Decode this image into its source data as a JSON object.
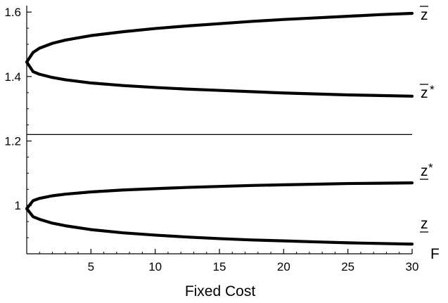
{
  "chart_data": {
    "type": "line",
    "xlabel": "Fixed Cost",
    "x_axis_end_label": "F",
    "xlim": [
      0,
      30
    ],
    "ylim": [
      0.85,
      1.62
    ],
    "x_ticks": [
      5,
      10,
      15,
      20,
      25,
      30
    ],
    "x_tick_labels": [
      "5",
      "10",
      "15",
      "20",
      "25",
      "30"
    ],
    "y_ticks": [
      1.0,
      1.2,
      1.4,
      1.6
    ],
    "y_tick_labels": [
      "1",
      "1.2",
      "1.4",
      "1.6"
    ],
    "horizontal_line": 1.22,
    "grid": false,
    "series": [
      {
        "name": "z̄",
        "x": [
          0,
          0.5,
          1,
          2,
          3,
          5,
          7.5,
          10,
          12.5,
          15,
          17.5,
          20,
          22.5,
          25,
          27.5,
          30
        ],
        "values": [
          1.445,
          1.475,
          1.488,
          1.503,
          1.513,
          1.527,
          1.539,
          1.549,
          1.557,
          1.564,
          1.571,
          1.577,
          1.582,
          1.587,
          1.592,
          1.596
        ]
      },
      {
        "name": "z̄*",
        "x": [
          0,
          0.5,
          1,
          2,
          3,
          5,
          7.5,
          10,
          12.5,
          15,
          17.5,
          20,
          22.5,
          25,
          27.5,
          30
        ],
        "values": [
          1.445,
          1.415,
          1.407,
          1.397,
          1.39,
          1.38,
          1.372,
          1.366,
          1.361,
          1.357,
          1.353,
          1.349,
          1.346,
          1.343,
          1.341,
          1.339
        ]
      },
      {
        "name": "z*",
        "x": [
          0,
          0.5,
          1,
          2,
          3,
          5,
          7.5,
          10,
          12.5,
          15,
          17.5,
          20,
          22.5,
          25,
          27.5,
          30
        ],
        "values": [
          0.99,
          1.015,
          1.022,
          1.03,
          1.035,
          1.042,
          1.048,
          1.052,
          1.056,
          1.059,
          1.062,
          1.064,
          1.066,
          1.068,
          1.069,
          1.07
        ]
      },
      {
        "name": "z",
        "x": [
          0,
          0.5,
          1,
          2,
          3,
          5,
          7.5,
          10,
          12.5,
          15,
          17.5,
          20,
          22.5,
          25,
          27.5,
          30
        ],
        "values": [
          0.99,
          0.965,
          0.957,
          0.945,
          0.937,
          0.925,
          0.915,
          0.908,
          0.902,
          0.897,
          0.893,
          0.89,
          0.887,
          0.884,
          0.882,
          0.88
        ]
      }
    ]
  }
}
